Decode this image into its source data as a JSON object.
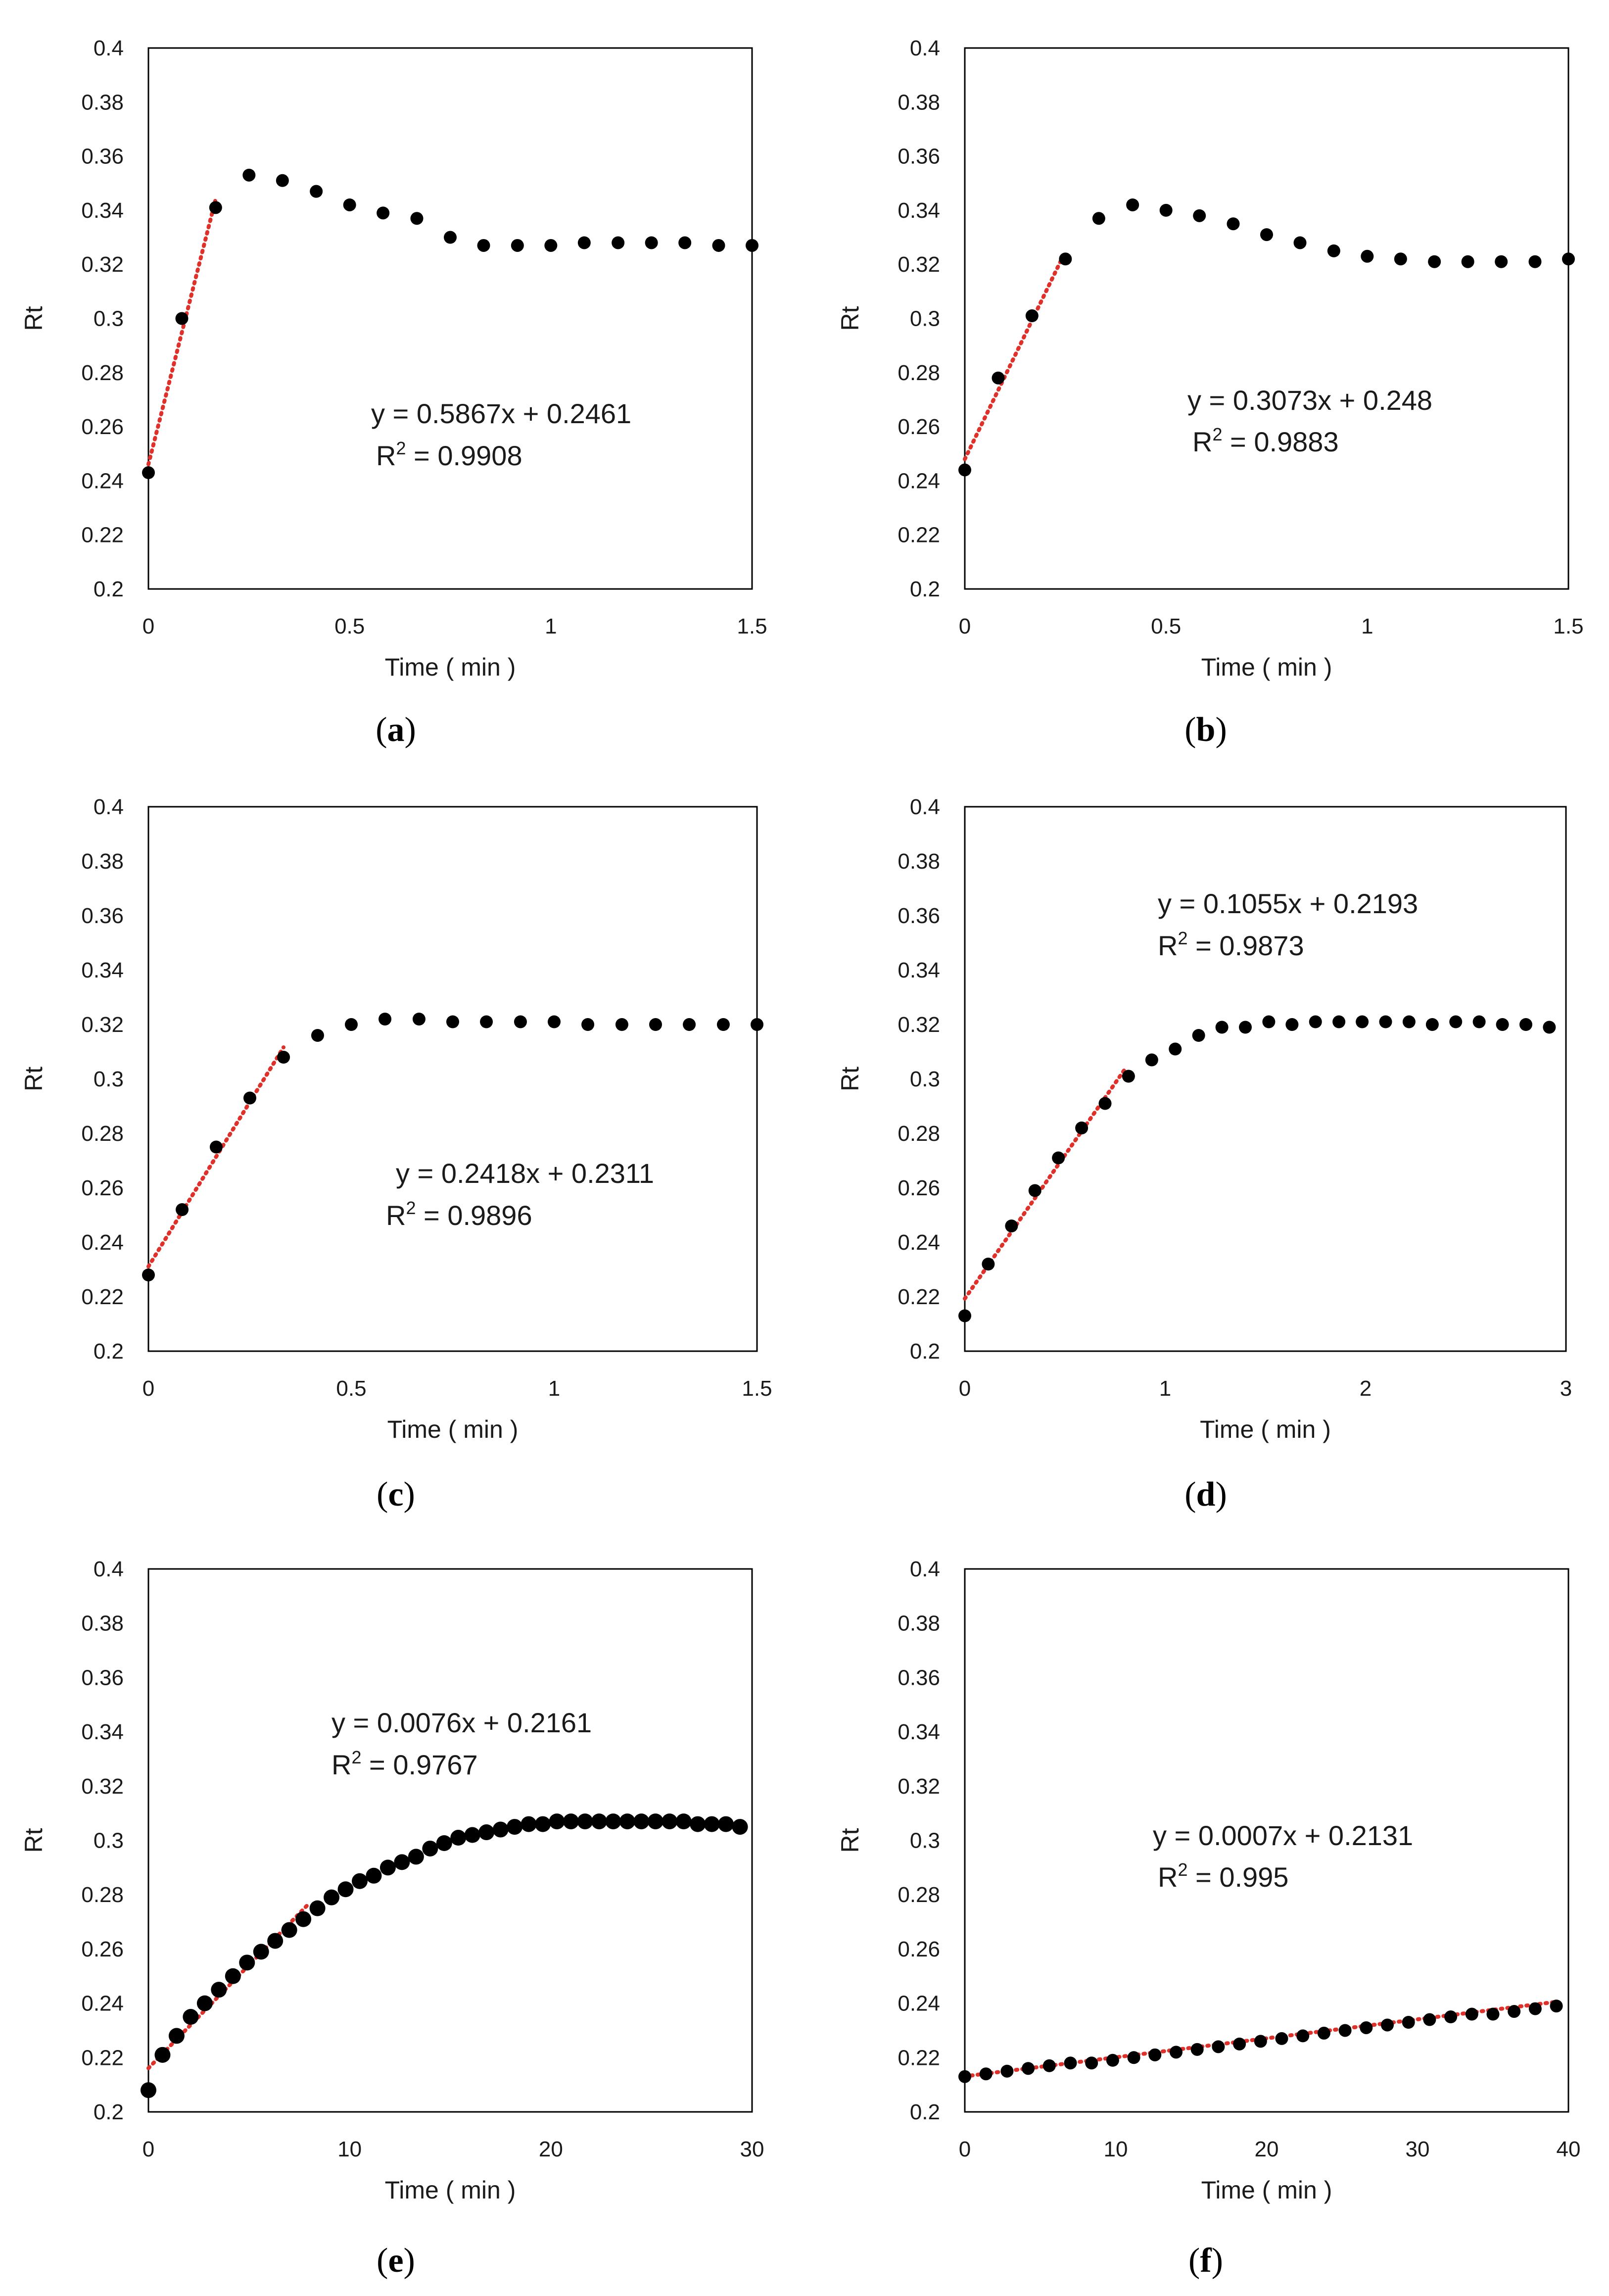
{
  "colors": {
    "marker": "#000000",
    "fit_line": "#e0302a"
  },
  "chart_data": [
    {
      "type": "scatter",
      "caption": "a",
      "xlabel": "Time ( min )",
      "ylabel": "Rt",
      "xlim": [
        0,
        1.5
      ],
      "ylim": [
        0.2,
        0.4
      ],
      "xticks": [
        "0",
        "0.5",
        "1",
        "1.5"
      ],
      "yticks": [
        "0.2",
        "0.22",
        "0.24",
        "0.26",
        "0.28",
        "0.3",
        "0.32",
        "0.34",
        "0.36",
        "0.38",
        "0.4"
      ],
      "equation": "y = 0.5867x + 0.2461",
      "r2": "0.9908",
      "fit": {
        "slope": 0.5867,
        "intercept": 0.2461,
        "x_range": [
          0,
          0.167
        ]
      },
      "x": [
        0,
        0.083,
        0.167,
        0.25,
        0.333,
        0.417,
        0.5,
        0.583,
        0.667,
        0.75,
        0.833,
        0.917,
        1.0,
        1.083,
        1.167,
        1.25,
        1.333,
        1.417,
        1.5
      ],
      "y": [
        0.243,
        0.3,
        0.341,
        0.353,
        0.351,
        0.347,
        0.342,
        0.339,
        0.337,
        0.33,
        0.327,
        0.327,
        0.327,
        0.328,
        0.328,
        0.328,
        0.328,
        0.327,
        0.327
      ]
    },
    {
      "type": "scatter",
      "caption": "b",
      "xlabel": "Time ( min )",
      "ylabel": "Rt",
      "xlim": [
        0,
        1.5
      ],
      "ylim": [
        0.2,
        0.4
      ],
      "xticks": [
        "0",
        "0.5",
        "1",
        "1.5"
      ],
      "yticks": [
        "0.2",
        "0.22",
        "0.24",
        "0.26",
        "0.28",
        "0.3",
        "0.32",
        "0.34",
        "0.36",
        "0.38",
        "0.4"
      ],
      "equation": "y = 0.3073x + 0.248",
      "r2": "0.9883",
      "fit": {
        "slope": 0.3073,
        "intercept": 0.248,
        "x_range": [
          0,
          0.25
        ]
      },
      "x": [
        0,
        0.083,
        0.167,
        0.25,
        0.333,
        0.417,
        0.5,
        0.583,
        0.667,
        0.75,
        0.833,
        0.917,
        1.0,
        1.083,
        1.167,
        1.25,
        1.333,
        1.417,
        1.5
      ],
      "y": [
        0.244,
        0.278,
        0.301,
        0.322,
        0.337,
        0.342,
        0.34,
        0.338,
        0.335,
        0.331,
        0.328,
        0.325,
        0.323,
        0.322,
        0.321,
        0.321,
        0.321,
        0.321,
        0.322
      ]
    },
    {
      "type": "scatter",
      "caption": "c",
      "xlabel": "Time ( min )",
      "ylabel": "Rt",
      "xlim": [
        0,
        1.5
      ],
      "ylim": [
        0.2,
        0.4
      ],
      "xticks": [
        "0",
        "0.5",
        "1",
        "1.5"
      ],
      "yticks": [
        "0.2",
        "0.22",
        "0.24",
        "0.26",
        "0.28",
        "0.3",
        "0.32",
        "0.34",
        "0.36",
        "0.38",
        "0.4"
      ],
      "equation": "y = 0.2418x + 0.2311",
      "r2": "0.9896",
      "fit": {
        "slope": 0.2418,
        "intercept": 0.2311,
        "x_range": [
          0,
          0.333
        ]
      },
      "x": [
        0,
        0.083,
        0.167,
        0.25,
        0.333,
        0.417,
        0.5,
        0.583,
        0.667,
        0.75,
        0.833,
        0.917,
        1.0,
        1.083,
        1.167,
        1.25,
        1.333,
        1.417,
        1.5
      ],
      "y": [
        0.228,
        0.252,
        0.275,
        0.293,
        0.308,
        0.316,
        0.32,
        0.322,
        0.322,
        0.321,
        0.321,
        0.321,
        0.321,
        0.32,
        0.32,
        0.32,
        0.32,
        0.32,
        0.32
      ]
    },
    {
      "type": "scatter",
      "caption": "d",
      "xlabel": "Time ( min )",
      "ylabel": "Rt",
      "xlim": [
        0,
        3
      ],
      "ylim": [
        0.2,
        0.4
      ],
      "xticks": [
        "0",
        "1",
        "2",
        "3"
      ],
      "yticks": [
        "0.2",
        "0.22",
        "0.24",
        "0.26",
        "0.28",
        "0.3",
        "0.32",
        "0.34",
        "0.36",
        "0.38",
        "0.4"
      ],
      "equation": "y = 0.1055x + 0.2193",
      "r2": "0.9873",
      "fit": {
        "slope": 0.1055,
        "intercept": 0.2193,
        "x_range": [
          0,
          0.8
        ]
      },
      "x": [
        0,
        0.117,
        0.233,
        0.35,
        0.467,
        0.583,
        0.7,
        0.817,
        0.933,
        1.05,
        1.167,
        1.283,
        1.4,
        1.517,
        1.633,
        1.75,
        1.867,
        1.983,
        2.1,
        2.217,
        2.333,
        2.45,
        2.567,
        2.683,
        2.8,
        2.917
      ],
      "y": [
        0.213,
        0.232,
        0.246,
        0.259,
        0.271,
        0.282,
        0.291,
        0.301,
        0.307,
        0.311,
        0.316,
        0.319,
        0.319,
        0.321,
        0.32,
        0.321,
        0.321,
        0.321,
        0.321,
        0.321,
        0.32,
        0.321,
        0.321,
        0.32,
        0.32,
        0.319
      ]
    },
    {
      "type": "scatter",
      "caption": "e",
      "xlabel": "Time ( min )",
      "ylabel": "Rt",
      "xlim": [
        0,
        30
      ],
      "ylim": [
        0.2,
        0.4
      ],
      "xticks": [
        "0",
        "10",
        "20",
        "30"
      ],
      "yticks": [
        "0.2",
        "0.22",
        "0.24",
        "0.26",
        "0.28",
        "0.3",
        "0.32",
        "0.34",
        "0.36",
        "0.38",
        "0.4"
      ],
      "equation": "y = 0.0076x + 0.2161",
      "r2": "0.9767",
      "fit": {
        "slope": 0.0076,
        "intercept": 0.2161,
        "x_range": [
          0,
          8
        ]
      },
      "x": [
        0,
        0.7,
        1.4,
        2.1,
        2.8,
        3.5,
        4.2,
        4.9,
        5.6,
        6.3,
        7.0,
        7.7,
        8.4,
        9.1,
        9.8,
        10.5,
        11.2,
        11.9,
        12.6,
        13.3,
        14.0,
        14.7,
        15.4,
        16.1,
        16.8,
        17.5,
        18.2,
        18.9,
        19.6,
        20.3,
        21.0,
        21.7,
        22.4,
        23.1,
        23.8,
        24.5,
        25.2,
        25.9,
        26.6,
        27.3,
        28.0,
        28.7,
        29.4
      ],
      "y": [
        0.208,
        0.221,
        0.228,
        0.235,
        0.24,
        0.245,
        0.25,
        0.255,
        0.259,
        0.263,
        0.267,
        0.271,
        0.275,
        0.279,
        0.282,
        0.285,
        0.287,
        0.29,
        0.292,
        0.294,
        0.297,
        0.299,
        0.301,
        0.302,
        0.303,
        0.304,
        0.305,
        0.306,
        0.306,
        0.307,
        0.307,
        0.307,
        0.307,
        0.307,
        0.307,
        0.307,
        0.307,
        0.307,
        0.307,
        0.306,
        0.306,
        0.306,
        0.305
      ]
    },
    {
      "type": "scatter",
      "caption": "f",
      "xlabel": "Time ( min )",
      "ylabel": "Rt",
      "xlim": [
        0,
        40
      ],
      "ylim": [
        0.2,
        0.4
      ],
      "xticks": [
        "0",
        "10",
        "20",
        "30",
        "40"
      ],
      "yticks": [
        "0.2",
        "0.22",
        "0.24",
        "0.26",
        "0.28",
        "0.3",
        "0.32",
        "0.34",
        "0.36",
        "0.38",
        "0.4"
      ],
      "equation": "y = 0.0007x + 0.2131",
      "r2": "0.995",
      "fit": {
        "slope": 0.0007,
        "intercept": 0.2131,
        "x_range": [
          0,
          39
        ]
      },
      "x": [
        0,
        1.4,
        2.8,
        4.2,
        5.6,
        7.0,
        8.4,
        9.8,
        11.2,
        12.6,
        14.0,
        15.4,
        16.8,
        18.2,
        19.6,
        21.0,
        22.4,
        23.8,
        25.2,
        26.6,
        28.0,
        29.4,
        30.8,
        32.2,
        33.6,
        35.0,
        36.4,
        37.8,
        39.2
      ],
      "y": [
        0.213,
        0.214,
        0.215,
        0.216,
        0.217,
        0.218,
        0.218,
        0.219,
        0.22,
        0.221,
        0.222,
        0.223,
        0.224,
        0.225,
        0.226,
        0.227,
        0.228,
        0.229,
        0.23,
        0.231,
        0.232,
        0.233,
        0.234,
        0.235,
        0.236,
        0.236,
        0.237,
        0.238,
        0.239
      ]
    }
  ]
}
